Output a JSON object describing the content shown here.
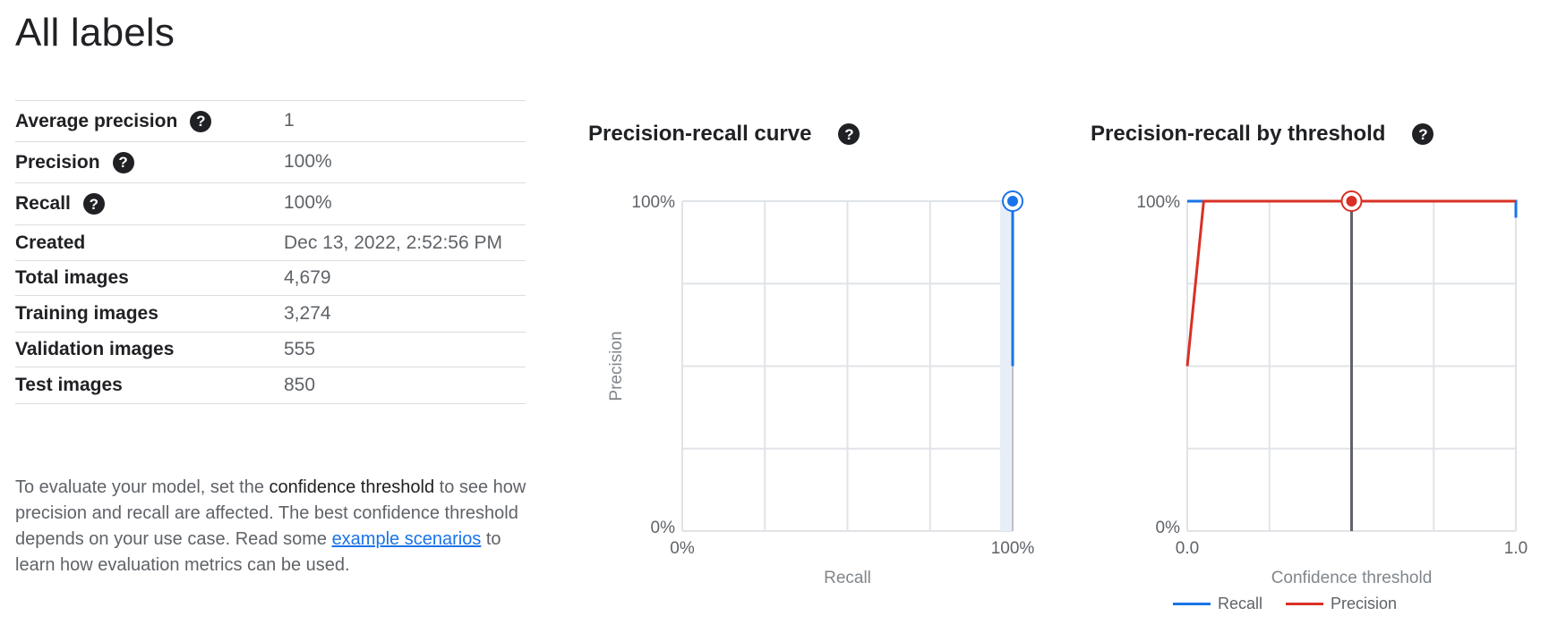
{
  "page_title": "All labels",
  "metrics": [
    {
      "label": "Average precision",
      "value": "1",
      "help": true
    },
    {
      "label": "Precision",
      "value": "100%",
      "help": true
    },
    {
      "label": "Recall",
      "value": "100%",
      "help": true
    },
    {
      "label": "Created",
      "value": "Dec 13, 2022, 2:52:56 PM",
      "help": false
    },
    {
      "label": "Total images",
      "value": "4,679",
      "help": false
    },
    {
      "label": "Training images",
      "value": "3,274",
      "help": false
    },
    {
      "label": "Validation images",
      "value": "555",
      "help": false
    },
    {
      "label": "Test images",
      "value": "850",
      "help": false
    }
  ],
  "help_text": {
    "part1": "To evaluate your model, set the ",
    "bold": "confidence threshold",
    "part2": " to see how precision and recall are affected. The best confidence threshold depends on your use case. Read some ",
    "link": "example scenarios",
    "part3": " to learn how evaluation metrics can be used."
  },
  "help_icon_glyph": "?",
  "colors": {
    "recall": "#1a73e8",
    "precision": "#d93025",
    "threshold_line": "#5f6368",
    "grid": "#e0e3e7"
  },
  "chart_data": [
    {
      "type": "line",
      "title": "Precision-recall curve",
      "xlabel": "Recall",
      "ylabel": "Precision",
      "xlim": [
        0,
        1
      ],
      "ylim": [
        0,
        1
      ],
      "x_tick_labels": [
        "0%",
        "100%"
      ],
      "y_tick_labels": [
        "0%",
        "100%"
      ],
      "grid": true,
      "series": [
        {
          "x": [
            1.0,
            1.0
          ],
          "y": [
            0.5,
            1.0
          ]
        }
      ],
      "marker": {
        "x": 1.0,
        "y": 1.0
      }
    },
    {
      "type": "line",
      "title": "Precision-recall by threshold",
      "xlabel": "Confidence threshold",
      "ylabel": "",
      "xlim": [
        0,
        1
      ],
      "ylim": [
        0,
        1
      ],
      "x_tick_labels": [
        "0.0",
        "1.0"
      ],
      "y_tick_labels": [
        "0%",
        "100%"
      ],
      "grid": true,
      "legend": "bottom",
      "series": [
        {
          "name": "Recall",
          "x": [
            0.0,
            1.0,
            1.0
          ],
          "y": [
            1.0,
            1.0,
            0.95
          ]
        },
        {
          "name": "Precision",
          "x": [
            0.0,
            0.05,
            1.0
          ],
          "y": [
            0.5,
            1.0,
            1.0
          ]
        }
      ],
      "threshold": 0.5,
      "marker": {
        "x": 0.5,
        "y": 1.0
      }
    }
  ]
}
